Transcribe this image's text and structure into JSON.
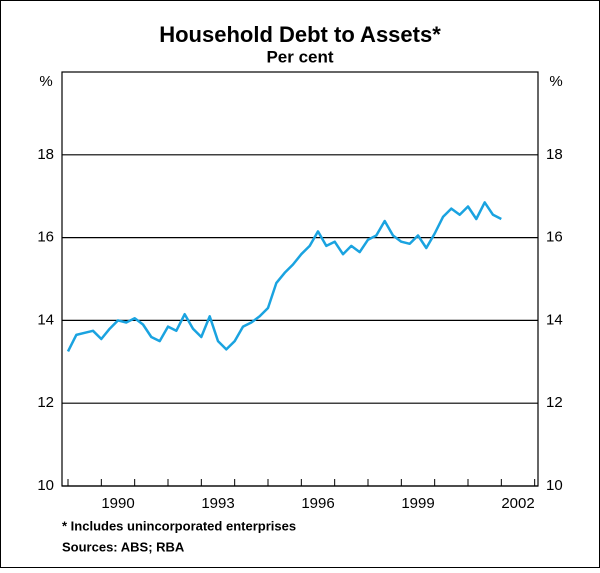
{
  "chart_data": {
    "type": "line",
    "title": "Household Debt to Assets*",
    "subtitle": "Per cent",
    "y_unit": "%",
    "footnote": "*    Includes unincorporated enterprises",
    "source": "Sources: ABS; RBA",
    "x": [
      1989,
      1989.25,
      1989.5,
      1989.75,
      1990,
      1990.25,
      1990.5,
      1990.75,
      1991,
      1991.25,
      1991.5,
      1991.75,
      1992,
      1992.25,
      1992.5,
      1992.75,
      1993,
      1993.25,
      1993.5,
      1993.75,
      1994,
      1994.25,
      1994.5,
      1994.75,
      1995,
      1995.25,
      1995.5,
      1995.75,
      1996,
      1996.25,
      1996.5,
      1996.75,
      1997,
      1997.25,
      1997.5,
      1997.75,
      1998,
      1998.25,
      1998.5,
      1998.75,
      1999,
      1999.25,
      1999.5,
      1999.75,
      2000,
      2000.25,
      2000.5,
      2000.75,
      2001,
      2001.25,
      2001.5,
      2001.75,
      2002
    ],
    "series": [
      {
        "name": "Household debt to assets",
        "color": "#1aa3e0",
        "values": [
          13.25,
          13.65,
          13.7,
          13.75,
          13.55,
          13.8,
          14.0,
          13.95,
          14.05,
          13.9,
          13.6,
          13.5,
          13.85,
          13.75,
          14.15,
          13.8,
          13.6,
          14.1,
          13.5,
          13.3,
          13.5,
          13.85,
          13.95,
          14.1,
          14.3,
          14.9,
          15.15,
          15.35,
          15.6,
          15.8,
          16.15,
          15.8,
          15.9,
          15.6,
          15.8,
          15.65,
          15.95,
          16.05,
          16.4,
          16.05,
          15.9,
          15.85,
          16.05,
          15.75,
          16.1,
          16.5,
          16.7,
          16.55,
          16.75,
          16.45,
          16.85,
          16.55,
          16.45
        ]
      }
    ],
    "xlim": [
      1988.82,
      2003.1
    ],
    "xticks": [
      {
        "value": 1990.5,
        "label": "1990"
      },
      {
        "value": 1993.5,
        "label": "1993"
      },
      {
        "value": 1996.5,
        "label": "1996"
      },
      {
        "value": 1999.5,
        "label": "1999"
      },
      {
        "value": 2002.5,
        "label": "2002"
      }
    ],
    "ylim": [
      10,
      20
    ],
    "yticks": [
      10,
      12,
      14,
      16,
      18
    ],
    "grid": true
  }
}
